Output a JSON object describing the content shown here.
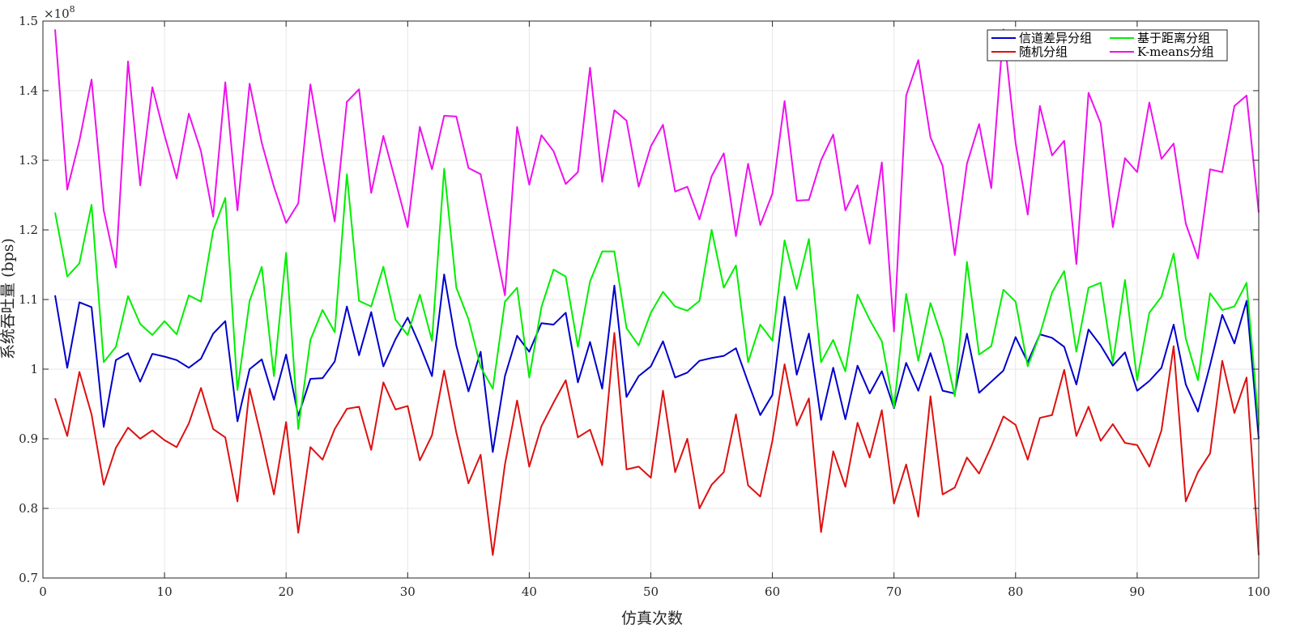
{
  "chart_data": {
    "type": "line",
    "title": "",
    "xlabel": "仿真次数",
    "ylabel": "系统吞吐量 (bps)",
    "y_exponent_label": "×10",
    "y_exponent_power": "8",
    "xlim": [
      0,
      100
    ],
    "ylim": [
      0.7,
      1.5
    ],
    "x_ticks": [
      0,
      10,
      20,
      30,
      40,
      50,
      60,
      70,
      80,
      90,
      100
    ],
    "x_tick_labels": [
      "0",
      "10",
      "20",
      "30",
      "40",
      "50",
      "60",
      "70",
      "80",
      "90",
      "100"
    ],
    "y_ticks": [
      0.7,
      0.8,
      0.9,
      1.0,
      1.1,
      1.2,
      1.3,
      1.4,
      1.5
    ],
    "y_tick_labels": [
      "0.7",
      "0.8",
      "0.9",
      "1",
      "1.1",
      "1.2",
      "1.3",
      "1.4",
      "1.5"
    ],
    "grid": true,
    "legend_position": "top-right",
    "legend_columns": 2,
    "x": [
      1,
      2,
      3,
      4,
      5,
      6,
      7,
      8,
      9,
      10,
      11,
      12,
      13,
      14,
      15,
      16,
      17,
      18,
      19,
      20,
      21,
      22,
      23,
      24,
      25,
      26,
      27,
      28,
      29,
      30,
      31,
      32,
      33,
      34,
      35,
      36,
      37,
      38,
      39,
      40,
      41,
      42,
      43,
      44,
      45,
      46,
      47,
      48,
      49,
      50,
      51,
      52,
      53,
      54,
      55,
      56,
      57,
      58,
      59,
      60,
      61,
      62,
      63,
      64,
      65,
      66,
      67,
      68,
      69,
      70,
      71,
      72,
      73,
      74,
      75,
      76,
      77,
      78,
      79,
      80,
      81,
      82,
      83,
      84,
      85,
      86,
      87,
      88,
      89,
      90,
      91,
      92,
      93,
      94,
      95,
      96,
      97,
      98,
      99,
      100
    ],
    "series": [
      {
        "name": "信道差异分组",
        "color": "#0000cc",
        "values": [
          1.106,
          1.002,
          1.096,
          1.089,
          0.917,
          1.013,
          1.023,
          0.982,
          1.022,
          1.018,
          1.013,
          1.002,
          1.015,
          1.051,
          1.069,
          0.925,
          1.0,
          1.014,
          0.956,
          1.021,
          0.933,
          0.986,
          0.987,
          1.011,
          1.09,
          1.02,
          1.082,
          1.004,
          1.043,
          1.074,
          1.034,
          0.99,
          1.136,
          1.034,
          0.968,
          1.025,
          0.881,
          0.99,
          1.048,
          1.025,
          1.066,
          1.064,
          1.081,
          0.981,
          1.039,
          0.972,
          1.12,
          0.96,
          0.99,
          1.004,
          1.04,
          0.988,
          0.995,
          1.012,
          1.016,
          1.019,
          1.03,
          0.981,
          0.934,
          0.963,
          1.104,
          0.992,
          1.051,
          0.927,
          1.002,
          0.928,
          1.005,
          0.965,
          0.997,
          0.944,
          1.009,
          0.969,
          1.023,
          0.969,
          0.965,
          1.051,
          0.966,
          0.982,
          0.998,
          1.046,
          1.01,
          1.05,
          1.045,
          1.032,
          0.978,
          1.057,
          1.034,
          1.005,
          1.024,
          0.969,
          0.983,
          1.002,
          1.064,
          0.978,
          0.939,
          1.006,
          1.078,
          1.037,
          1.098,
          0.9
        ]
      },
      {
        "name": "基于距离分组",
        "color": "#00ee00",
        "values": [
          1.225,
          1.133,
          1.152,
          1.236,
          1.01,
          1.032,
          1.105,
          1.065,
          1.049,
          1.069,
          1.05,
          1.106,
          1.097,
          1.199,
          1.246,
          0.97,
          1.098,
          1.147,
          0.99,
          1.167,
          0.914,
          1.042,
          1.085,
          1.053,
          1.28,
          1.098,
          1.09,
          1.147,
          1.071,
          1.049,
          1.107,
          1.041,
          1.288,
          1.117,
          1.072,
          1.003,
          0.972,
          1.097,
          1.117,
          0.988,
          1.089,
          1.143,
          1.133,
          1.032,
          1.126,
          1.169,
          1.169,
          1.059,
          1.034,
          1.081,
          1.111,
          1.09,
          1.084,
          1.098,
          1.2,
          1.117,
          1.149,
          1.01,
          1.064,
          1.041,
          1.185,
          1.115,
          1.187,
          1.01,
          1.042,
          0.997,
          1.107,
          1.071,
          1.04,
          0.945,
          1.108,
          1.012,
          1.095,
          1.042,
          0.961,
          1.154,
          1.021,
          1.033,
          1.114,
          1.097,
          1.004,
          1.05,
          1.11,
          1.141,
          1.025,
          1.117,
          1.124,
          1.009,
          1.128,
          0.984,
          1.081,
          1.104,
          1.166,
          1.044,
          0.984,
          1.109,
          1.085,
          1.09,
          1.124,
          0.92
        ]
      },
      {
        "name": "随机分组",
        "color": "#dd1111",
        "values": [
          0.958,
          0.904,
          0.996,
          0.935,
          0.834,
          0.887,
          0.916,
          0.9,
          0.912,
          0.898,
          0.888,
          0.922,
          0.973,
          0.914,
          0.902,
          0.81,
          0.972,
          0.899,
          0.82,
          0.924,
          0.765,
          0.888,
          0.87,
          0.914,
          0.943,
          0.946,
          0.884,
          0.981,
          0.942,
          0.947,
          0.869,
          0.905,
          0.998,
          0.909,
          0.836,
          0.877,
          0.733,
          0.863,
          0.955,
          0.86,
          0.918,
          0.952,
          0.984,
          0.902,
          0.913,
          0.862,
          1.052,
          0.856,
          0.86,
          0.844,
          0.969,
          0.852,
          0.9,
          0.8,
          0.834,
          0.852,
          0.935,
          0.833,
          0.817,
          0.897,
          1.007,
          0.919,
          0.958,
          0.766,
          0.882,
          0.831,
          0.923,
          0.873,
          0.941,
          0.807,
          0.863,
          0.788,
          0.961,
          0.82,
          0.83,
          0.873,
          0.85,
          0.889,
          0.932,
          0.92,
          0.87,
          0.93,
          0.934,
          0.999,
          0.904,
          0.946,
          0.897,
          0.921,
          0.894,
          0.891,
          0.86,
          0.912,
          1.033,
          0.81,
          0.852,
          0.879,
          1.012,
          0.937,
          0.988,
          0.733
        ]
      },
      {
        "name": "K-means分组",
        "color": "#ee11ee",
        "values": [
          1.488,
          1.258,
          1.328,
          1.416,
          1.228,
          1.146,
          1.442,
          1.264,
          1.405,
          1.336,
          1.274,
          1.367,
          1.313,
          1.219,
          1.412,
          1.228,
          1.41,
          1.325,
          1.262,
          1.21,
          1.238,
          1.409,
          1.306,
          1.212,
          1.384,
          1.402,
          1.253,
          1.335,
          1.27,
          1.204,
          1.348,
          1.287,
          1.364,
          1.363,
          1.289,
          1.28,
          1.193,
          1.106,
          1.348,
          1.265,
          1.336,
          1.313,
          1.266,
          1.283,
          1.433,
          1.269,
          1.372,
          1.357,
          1.262,
          1.32,
          1.351,
          1.255,
          1.262,
          1.215,
          1.277,
          1.31,
          1.191,
          1.295,
          1.207,
          1.252,
          1.385,
          1.242,
          1.243,
          1.3,
          1.337,
          1.228,
          1.264,
          1.18,
          1.297,
          1.054,
          1.393,
          1.444,
          1.333,
          1.292,
          1.164,
          1.295,
          1.352,
          1.26,
          1.488,
          1.325,
          1.222,
          1.378,
          1.307,
          1.328,
          1.151,
          1.397,
          1.353,
          1.204,
          1.303,
          1.283,
          1.383,
          1.302,
          1.324,
          1.209,
          1.159,
          1.287,
          1.283,
          1.378,
          1.393,
          1.225
        ]
      }
    ]
  }
}
